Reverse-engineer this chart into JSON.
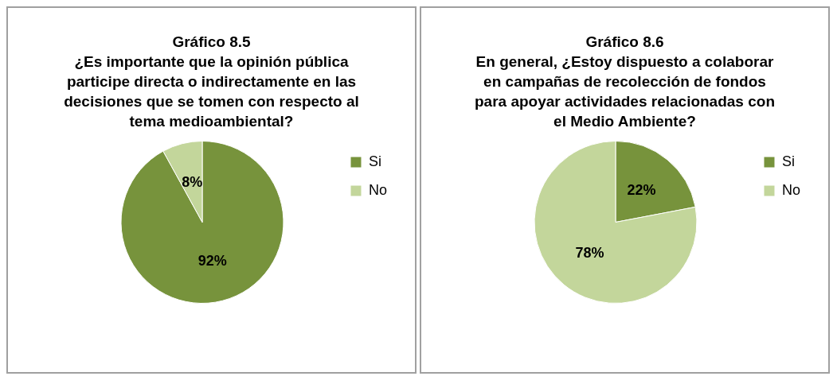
{
  "chart_data": [
    {
      "type": "pie",
      "title": "Gráfico 8.5",
      "subtitle": "¿Es importante que la opinión pública participe directa o indirectamente en las decisiones que se tomen con respecto al tema medioambiental?",
      "categories": [
        "Si",
        "No"
      ],
      "values": [
        92,
        8
      ],
      "value_labels": [
        "92%",
        "8%"
      ],
      "colors": [
        "#77933c",
        "#c3d69b"
      ],
      "legend": "right"
    },
    {
      "type": "pie",
      "title": "Gráfico 8.6",
      "subtitle": "En general, ¿Estoy dispuesto a colaborar en campañas de recolección de fondos para apoyar actividades relacionadas con el Medio Ambiente?",
      "categories": [
        "Si",
        "No"
      ],
      "values": [
        22,
        78
      ],
      "value_labels": [
        "22%",
        "78%"
      ],
      "colors": [
        "#77933c",
        "#c3d69b"
      ],
      "legend": "right"
    }
  ]
}
